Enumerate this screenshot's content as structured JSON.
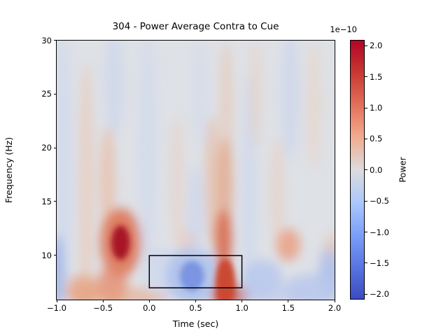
{
  "figure": {
    "title": "304 - Power Average Contra to Cue",
    "xlabel": "Time (sec)",
    "ylabel": "Frequency (Hz)",
    "colorbar_label": "Power",
    "colorbar_offset_text": "1e−10"
  },
  "chart_data": {
    "type": "heatmap",
    "title": "304 - Power Average Contra to Cue",
    "xlabel": "Time (sec)",
    "ylabel": "Frequency (Hz)",
    "x_range": [
      -1.0,
      2.0
    ],
    "y_range": [
      5.9,
      30.0
    ],
    "grid": false,
    "colormap": "coolwarm",
    "x_ticks": [
      -1.0,
      -0.5,
      0.0,
      0.5,
      1.0,
      1.5,
      2.0
    ],
    "x_ticklabels": [
      "−1.0",
      "−0.5",
      "0.0",
      "0.5",
      "1.0",
      "1.5",
      "2.0"
    ],
    "y_ticks": [
      30,
      25,
      20,
      15,
      10
    ],
    "y_ticklabels": [
      "30",
      "25",
      "20",
      "15",
      "10"
    ],
    "colorbar": {
      "label": "Power",
      "scale_text": "1e−10",
      "vmin_display": -2.08,
      "vmax_display": 2.08,
      "units": "1e-10",
      "ticks": [
        2.0,
        1.5,
        1.0,
        0.5,
        0.0,
        -0.5,
        -1.0,
        -1.5,
        -2.0
      ],
      "ticklabels": [
        "2.0",
        "1.5",
        "1.0",
        "0.5",
        "0.0",
        "−0.5",
        "−1.0",
        "−1.5",
        "−2.0"
      ],
      "position": "right"
    },
    "colormap_stops": [
      {
        "pos": 0.0,
        "color": "#b40426"
      },
      {
        "pos": 0.13,
        "color": "#c93b33"
      },
      {
        "pos": 0.25,
        "color": "#e3705a"
      },
      {
        "pos": 0.37,
        "color": "#f2aa8d"
      },
      {
        "pos": 0.5,
        "color": "#dcdcdc"
      },
      {
        "pos": 0.63,
        "color": "#aac7fd"
      },
      {
        "pos": 0.75,
        "color": "#7c9ff9"
      },
      {
        "pos": 0.87,
        "color": "#5977e3"
      },
      {
        "pos": 1.0,
        "color": "#3b4cc0"
      }
    ],
    "annotation_box": {
      "time": [
        0.0,
        1.0
      ],
      "freq": [
        7.0,
        10.0
      ],
      "color": "#000000"
    },
    "hotspots": [
      {
        "time": -0.31,
        "freq": 11.1,
        "power_1e-10": 2.0,
        "desc": "strong positive (dark red) blob"
      },
      {
        "time": -0.4,
        "freq": 7.3,
        "power_1e-10": 0.8,
        "desc": "warm patch below red blob"
      },
      {
        "time": -0.72,
        "freq": 6.8,
        "power_1e-10": 0.7,
        "desc": "warm patch bottom-left"
      },
      {
        "time": 0.46,
        "freq": 8.1,
        "power_1e-10": -1.3,
        "desc": "negative (blue) blob inside annotation box"
      },
      {
        "time": 0.82,
        "freq": 8.0,
        "power_1e-10": 1.4,
        "desc": "positive vertical streak spanning ~6-13 Hz"
      },
      {
        "time": 1.5,
        "freq": 11.0,
        "power_1e-10": 0.8,
        "desc": "moderate warm blob"
      },
      {
        "time": 1.22,
        "freq": 7.8,
        "power_1e-10": -0.6,
        "desc": "cool patch right of streak"
      },
      {
        "time": 1.95,
        "freq": 8.5,
        "power_1e-10": -0.8,
        "desc": "cool patch bottom-right edge"
      }
    ],
    "coarse_grid": {
      "note": "estimated power values in units of 1e-10",
      "time": [
        -1.0,
        -0.75,
        -0.5,
        -0.25,
        0.0,
        0.25,
        0.5,
        0.75,
        1.0,
        1.25,
        1.5,
        1.75,
        2.0
      ],
      "freq": [
        27.5,
        22.5,
        17.5,
        12.5,
        10.0,
        7.5
      ],
      "values": [
        [
          -0.1,
          0.15,
          -0.2,
          0.1,
          -0.2,
          0.0,
          0.1,
          0.25,
          -0.15,
          0.2,
          -0.3,
          0.15,
          -0.1
        ],
        [
          -0.1,
          0.2,
          -0.25,
          0.15,
          -0.2,
          0.05,
          0.15,
          0.4,
          -0.2,
          0.25,
          -0.35,
          0.2,
          -0.1
        ],
        [
          0.0,
          0.25,
          0.3,
          0.2,
          -0.15,
          0.15,
          0.1,
          0.6,
          -0.2,
          0.3,
          -0.1,
          0.1,
          -0.15
        ],
        [
          0.1,
          0.2,
          0.5,
          1.0,
          -0.1,
          0.2,
          0.15,
          0.9,
          0.1,
          0.2,
          0.5,
          0.0,
          -0.2
        ],
        [
          0.2,
          0.3,
          0.6,
          2.0,
          -0.1,
          -0.2,
          -0.5,
          1.1,
          0.3,
          -0.3,
          0.6,
          -0.2,
          -0.4
        ],
        [
          0.3,
          0.6,
          0.8,
          0.5,
          0.1,
          -0.3,
          -1.2,
          1.3,
          0.4,
          -0.6,
          -0.3,
          -0.5,
          -0.7
        ]
      ]
    },
    "render_features": [
      {
        "t": -0.93,
        "f": 18.0,
        "rt": 0.09,
        "rf": 13.0,
        "color": "#c7d3ef",
        "op": 0.5
      },
      {
        "t": -0.68,
        "f": 16.0,
        "rt": 0.08,
        "rf": 12.0,
        "color": "#eec2a8",
        "op": 0.5
      },
      {
        "t": -0.38,
        "f": 26.0,
        "rt": 0.11,
        "rf": 5.0,
        "color": "#c6d2ee",
        "op": 0.5
      },
      {
        "t": -0.45,
        "f": 17.0,
        "rt": 0.08,
        "rf": 5.0,
        "color": "#ecaf8e",
        "op": 0.55
      },
      {
        "t": -0.31,
        "f": 11.2,
        "rt": 0.22,
        "rf": 3.2,
        "color": "#dd6f4c",
        "op": 0.85
      },
      {
        "t": -0.31,
        "f": 11.2,
        "rt": 0.1,
        "rf": 1.6,
        "color": "#a81425",
        "op": 1,
        "core": true
      },
      {
        "t": -0.4,
        "f": 7.3,
        "rt": 0.16,
        "rf": 1.8,
        "color": "#e4876a",
        "op": 0.75
      },
      {
        "t": -0.72,
        "f": 6.8,
        "rt": 0.18,
        "rf": 1.4,
        "color": "#e79b78",
        "op": 0.7
      },
      {
        "t": -0.35,
        "f": 6.1,
        "rt": 0.55,
        "rf": 1.0,
        "color": "#e9a37f",
        "op": 0.55
      },
      {
        "t": -1.0,
        "f": 8.5,
        "rt": 0.08,
        "rf": 3.5,
        "color": "#9db3e6",
        "op": 0.85
      },
      {
        "t": -0.02,
        "f": 20.0,
        "rt": 0.09,
        "rf": 11.0,
        "color": "#c9d5f0",
        "op": 0.5
      },
      {
        "t": 0.15,
        "f": 8.5,
        "rt": 0.22,
        "rf": 2.2,
        "color": "#ccd7ef",
        "op": 0.7
      },
      {
        "t": 0.3,
        "f": 17.0,
        "rt": 0.08,
        "rf": 6.0,
        "color": "#edc9b4",
        "op": 0.4
      },
      {
        "t": 0.42,
        "f": 11.3,
        "rt": 0.11,
        "rf": 1.2,
        "color": "#ecc3ae",
        "op": 0.55
      },
      {
        "t": 0.46,
        "f": 8.1,
        "rt": 0.28,
        "rf": 2.6,
        "color": "#aec1ec",
        "op": 0.9
      },
      {
        "t": 0.46,
        "f": 8.1,
        "rt": 0.13,
        "rf": 1.4,
        "color": "#7b94e1",
        "op": 1,
        "core": true
      },
      {
        "t": 0.5,
        "f": 14.0,
        "rt": 0.09,
        "rf": 4.5,
        "color": "#c8d4ef",
        "op": 0.55
      },
      {
        "t": 0.55,
        "f": 25.0,
        "rt": 0.09,
        "rf": 5.0,
        "color": "#cdd8f0",
        "op": 0.4
      },
      {
        "t": 0.68,
        "f": 17.0,
        "rt": 0.08,
        "rf": 6.0,
        "color": "#e9ae8c",
        "op": 0.5
      },
      {
        "t": 0.83,
        "f": 24.0,
        "rt": 0.07,
        "rf": 6.0,
        "color": "#ecbb9e",
        "op": 0.45
      },
      {
        "t": 0.82,
        "f": 16.5,
        "rt": 0.08,
        "rf": 4.5,
        "color": "#e39a74",
        "op": 0.65
      },
      {
        "t": 0.8,
        "f": 11.5,
        "rt": 0.09,
        "rf": 2.8,
        "color": "#d8674a",
        "op": 0.9
      },
      {
        "t": 0.82,
        "f": 7.5,
        "rt": 0.11,
        "rf": 2.2,
        "color": "#cb4a30",
        "op": 1,
        "core": true
      },
      {
        "t": 0.87,
        "f": 6.2,
        "rt": 0.2,
        "rf": 1.0,
        "color": "#c94a31",
        "op": 0.9
      },
      {
        "t": 1.08,
        "f": 16.0,
        "rt": 0.08,
        "rf": 11.0,
        "color": "#c6d3ef",
        "op": 0.5
      },
      {
        "t": 1.22,
        "f": 7.8,
        "rt": 0.22,
        "rf": 1.8,
        "color": "#b5c6ed",
        "op": 0.8
      },
      {
        "t": 1.15,
        "f": 25.0,
        "rt": 0.07,
        "rf": 5.0,
        "color": "#eec8b2",
        "op": 0.4
      },
      {
        "t": 1.5,
        "f": 11.0,
        "rt": 0.13,
        "rf": 1.5,
        "color": "#eb9f81",
        "op": 0.85
      },
      {
        "t": 1.38,
        "f": 16.0,
        "rt": 0.08,
        "rf": 5.0,
        "color": "#edc4ae",
        "op": 0.4
      },
      {
        "t": 1.52,
        "f": 25.0,
        "rt": 0.1,
        "rf": 6.0,
        "color": "#c3d0ee",
        "op": 0.5
      },
      {
        "t": 1.78,
        "f": 24.0,
        "rt": 0.08,
        "rf": 6.0,
        "color": "#eecab4",
        "op": 0.4
      },
      {
        "t": 1.95,
        "f": 8.5,
        "rt": 0.12,
        "rf": 2.5,
        "color": "#a9bce9",
        "op": 0.8
      },
      {
        "t": 1.75,
        "f": 6.8,
        "rt": 0.3,
        "rf": 1.5,
        "color": "#b7c7ec",
        "op": 0.8
      },
      {
        "t": 1.97,
        "f": 11.0,
        "rt": 0.08,
        "rf": 1.2,
        "color": "#ecc2aa",
        "op": 0.5
      },
      {
        "t": 1.4,
        "f": 6.2,
        "rt": 0.5,
        "rf": 0.8,
        "color": "#bcc9ec",
        "op": 0.6
      }
    ],
    "base_color": "#dee1e6"
  }
}
